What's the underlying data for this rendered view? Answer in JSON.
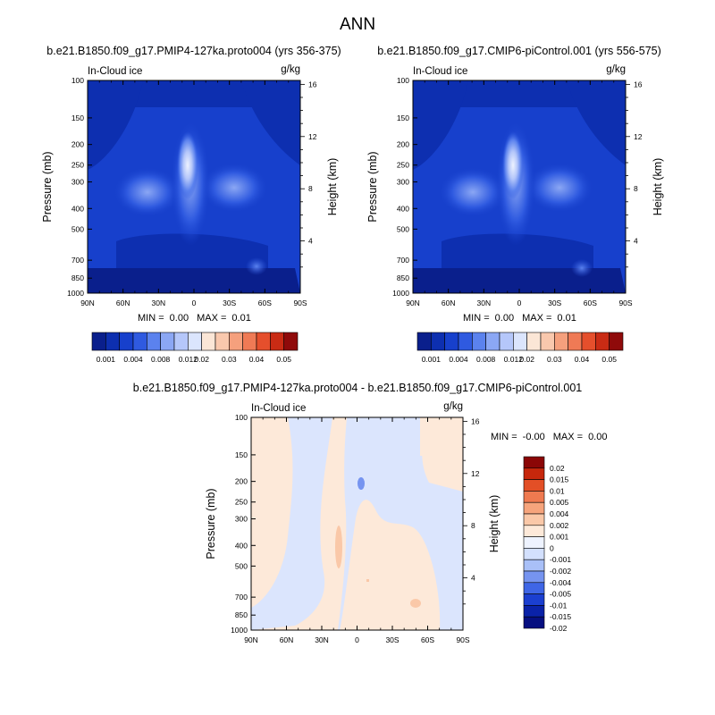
{
  "title": "ANN",
  "colors": {
    "abs_scale": [
      "#0a1f8c",
      "#0d2fb0",
      "#1740cc",
      "#2f5ae0",
      "#5b82ee",
      "#8ba7f4",
      "#b5c7fa",
      "#dbe5fd",
      "#fbe6d6",
      "#f9c8ad",
      "#f5a07d",
      "#ef7a55",
      "#e54f2c",
      "#c92b14",
      "#8f0a0a"
    ],
    "diff_scale": [
      "#060f80",
      "#0a22a8",
      "#1b3fd0",
      "#3f66e6",
      "#7694f0",
      "#a9c0f8",
      "#d3e0fd",
      "#eef3ff",
      "#fde9d9",
      "#fac8a8",
      "#f6a47c",
      "#ef7a50",
      "#e34f26",
      "#c7270c",
      "#8b0606"
    ]
  },
  "chart_data": [
    {
      "type": "heatmap",
      "title": "b.e21.B1850.f09_g17.PMIP4-127ka.proto004 (yrs 356-375)",
      "left_label": "In-Cloud ice",
      "right_label": "g/kg",
      "xlabel": "",
      "ylabel": "Pressure (mb)",
      "ylabel_right": "Height (km)",
      "xticks": [
        "90N",
        "60N",
        "30N",
        "0",
        "30S",
        "60S",
        "90S"
      ],
      "yticks": [
        100,
        150,
        200,
        250,
        300,
        400,
        500,
        700,
        850,
        1000
      ],
      "yticks_right": [
        16,
        12,
        8,
        4
      ],
      "stats": {
        "min_label": "MIN =",
        "min": "0.00",
        "max_label": "MAX =",
        "max": "0.01"
      },
      "colorbar_labels": [
        "0.001",
        "0.004",
        "0.008",
        "0.012",
        "0.02",
        "0.03",
        "0.04",
        "0.05"
      ]
    },
    {
      "type": "heatmap",
      "title": "b.e21.B1850.f09_g17.CMIP6-piControl.001 (yrs 556-575)",
      "left_label": "In-Cloud ice",
      "right_label": "g/kg",
      "xlabel": "",
      "ylabel": "Pressure (mb)",
      "ylabel_right": "Height (km)",
      "xticks": [
        "90N",
        "60N",
        "30N",
        "0",
        "30S",
        "60S",
        "90S"
      ],
      "yticks": [
        100,
        150,
        200,
        250,
        300,
        400,
        500,
        700,
        850,
        1000
      ],
      "yticks_right": [
        16,
        12,
        8,
        4
      ],
      "stats": {
        "min_label": "MIN =",
        "min": "0.00",
        "max_label": "MAX =",
        "max": "0.01"
      },
      "colorbar_labels": [
        "0.001",
        "0.004",
        "0.008",
        "0.012",
        "0.02",
        "0.03",
        "0.04",
        "0.05"
      ]
    },
    {
      "type": "heatmap",
      "title": "b.e21.B1850.f09_g17.PMIP4-127ka.proto004 - b.e21.B1850.f09_g17.CMIP6-piControl.001",
      "left_label": "In-Cloud ice",
      "right_label": "g/kg",
      "xlabel": "",
      "ylabel": "Pressure (mb)",
      "ylabel_right": "Height (km)",
      "xticks": [
        "90N",
        "60N",
        "30N",
        "0",
        "30S",
        "60S",
        "90S"
      ],
      "yticks": [
        100,
        150,
        200,
        250,
        300,
        400,
        500,
        700,
        850,
        1000
      ],
      "yticks_right": [
        16,
        12,
        8,
        4
      ],
      "stats": {
        "min_label": "MIN =",
        "min": "-0.00",
        "max_label": "MAX =",
        "max": "0.00"
      },
      "colorbar_labels": [
        "0.02",
        "0.015",
        "0.01",
        "0.005",
        "0.004",
        "0.002",
        "0.001",
        "0",
        "-0.001",
        "-0.002",
        "-0.004",
        "-0.005",
        "-0.01",
        "-0.015",
        "-0.02"
      ]
    }
  ]
}
